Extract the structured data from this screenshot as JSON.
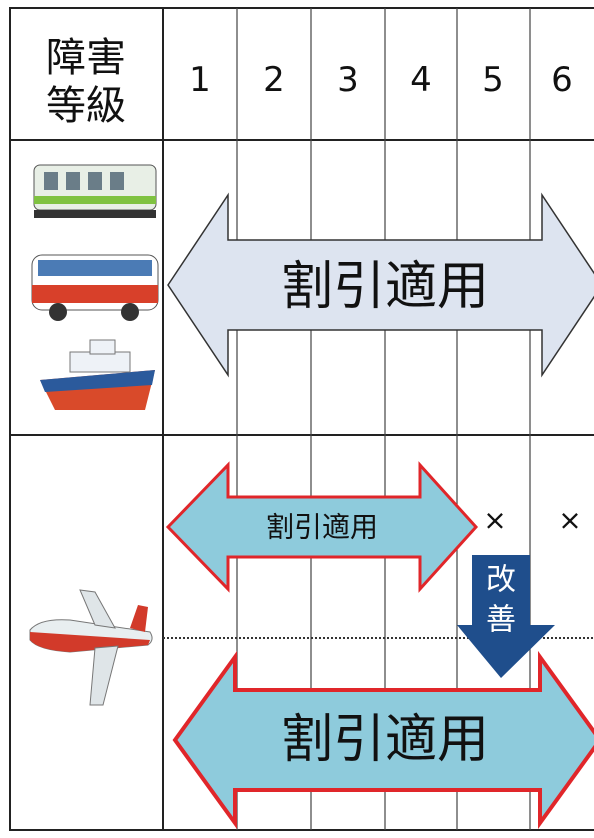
{
  "header": {
    "title": [
      "障害",
      "等級"
    ],
    "grades": [
      "1",
      "2",
      "3",
      "4",
      "5",
      "6"
    ]
  },
  "rows": [
    {
      "label": "割引適用"
    },
    {
      "current_label": "割引適用",
      "excluded": [
        "×",
        "×"
      ],
      "change_label": [
        "改",
        "善"
      ],
      "improved_label": "割引適用"
    }
  ]
}
